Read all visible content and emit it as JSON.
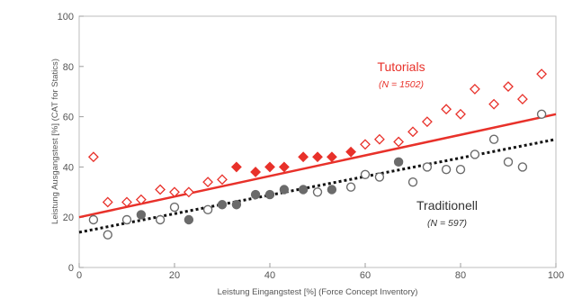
{
  "chart_data": {
    "type": "scatter",
    "xlabel": "Leistung Eingangstest [%] (Force Concept Inventory)",
    "ylabel": "Leistung Ausgangstest [%] (CAT for Statics)",
    "xlim": [
      0,
      100
    ],
    "ylim": [
      0,
      100
    ],
    "xticks": [
      0,
      20,
      40,
      60,
      80,
      100
    ],
    "yticks": [
      0,
      20,
      40,
      60,
      80,
      100
    ],
    "grid": false,
    "legend": "inline labels next to each series",
    "series": [
      {
        "name": "Tutorials",
        "n_label": "(N = 1502)",
        "color": "#e8312a",
        "marker": "diamond",
        "trend": {
          "x": [
            0,
            100
          ],
          "y": [
            20,
            61
          ]
        },
        "points": [
          {
            "x": 3,
            "y": 44,
            "filled": false
          },
          {
            "x": 6,
            "y": 26,
            "filled": false
          },
          {
            "x": 10,
            "y": 26,
            "filled": false
          },
          {
            "x": 13,
            "y": 27,
            "filled": false
          },
          {
            "x": 17,
            "y": 31,
            "filled": false
          },
          {
            "x": 20,
            "y": 30,
            "filled": false
          },
          {
            "x": 23,
            "y": 30,
            "filled": false
          },
          {
            "x": 27,
            "y": 34,
            "filled": false
          },
          {
            "x": 30,
            "y": 35,
            "filled": false
          },
          {
            "x": 33,
            "y": 40,
            "filled": true
          },
          {
            "x": 37,
            "y": 38,
            "filled": true
          },
          {
            "x": 40,
            "y": 40,
            "filled": true
          },
          {
            "x": 43,
            "y": 40,
            "filled": true
          },
          {
            "x": 47,
            "y": 44,
            "filled": true
          },
          {
            "x": 50,
            "y": 44,
            "filled": true
          },
          {
            "x": 53,
            "y": 44,
            "filled": true
          },
          {
            "x": 57,
            "y": 46,
            "filled": true
          },
          {
            "x": 60,
            "y": 49,
            "filled": false
          },
          {
            "x": 63,
            "y": 51,
            "filled": false
          },
          {
            "x": 67,
            "y": 50,
            "filled": false
          },
          {
            "x": 70,
            "y": 54,
            "filled": false
          },
          {
            "x": 73,
            "y": 58,
            "filled": false
          },
          {
            "x": 77,
            "y": 63,
            "filled": false
          },
          {
            "x": 80,
            "y": 61,
            "filled": false
          },
          {
            "x": 83,
            "y": 71,
            "filled": false
          },
          {
            "x": 87,
            "y": 65,
            "filled": false
          },
          {
            "x": 90,
            "y": 72,
            "filled": false
          },
          {
            "x": 93,
            "y": 67,
            "filled": false
          },
          {
            "x": 97,
            "y": 77,
            "filled": false
          }
        ]
      },
      {
        "name": "Traditionell",
        "n_label": "(N = 597)",
        "color": "#333333",
        "marker": "circle",
        "trend": {
          "x": [
            0,
            100
          ],
          "y": [
            14,
            51
          ]
        },
        "points": [
          {
            "x": 3,
            "y": 19,
            "filled": false
          },
          {
            "x": 6,
            "y": 13,
            "filled": false
          },
          {
            "x": 10,
            "y": 19,
            "filled": false
          },
          {
            "x": 13,
            "y": 21,
            "filled": true
          },
          {
            "x": 17,
            "y": 19,
            "filled": false
          },
          {
            "x": 20,
            "y": 24,
            "filled": false
          },
          {
            "x": 23,
            "y": 19,
            "filled": true
          },
          {
            "x": 27,
            "y": 23,
            "filled": false
          },
          {
            "x": 30,
            "y": 25,
            "filled": true
          },
          {
            "x": 33,
            "y": 25,
            "filled": true
          },
          {
            "x": 37,
            "y": 29,
            "filled": true
          },
          {
            "x": 40,
            "y": 29,
            "filled": true
          },
          {
            "x": 43,
            "y": 31,
            "filled": true
          },
          {
            "x": 47,
            "y": 31,
            "filled": true
          },
          {
            "x": 50,
            "y": 30,
            "filled": false
          },
          {
            "x": 53,
            "y": 31,
            "filled": true
          },
          {
            "x": 57,
            "y": 32,
            "filled": false
          },
          {
            "x": 60,
            "y": 37,
            "filled": false
          },
          {
            "x": 63,
            "y": 36,
            "filled": false
          },
          {
            "x": 67,
            "y": 42,
            "filled": true
          },
          {
            "x": 70,
            "y": 34,
            "filled": false
          },
          {
            "x": 73,
            "y": 40,
            "filled": false
          },
          {
            "x": 77,
            "y": 39,
            "filled": false
          },
          {
            "x": 80,
            "y": 39,
            "filled": false
          },
          {
            "x": 83,
            "y": 45,
            "filled": false
          },
          {
            "x": 87,
            "y": 51,
            "filled": false
          },
          {
            "x": 90,
            "y": 42,
            "filled": false
          },
          {
            "x": 93,
            "y": 40,
            "filled": false
          },
          {
            "x": 97,
            "y": 61,
            "filled": false
          }
        ]
      }
    ]
  }
}
